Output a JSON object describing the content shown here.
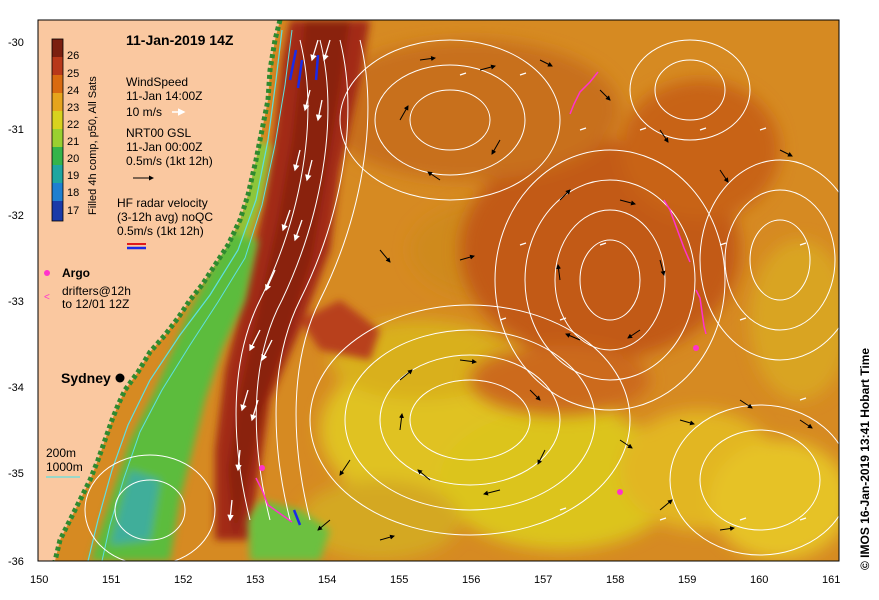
{
  "title": "11-Jan-2019 14Z",
  "colorbar": {
    "label": "Filled 4h comp, p50, All Sats",
    "ticks": [
      "26",
      "25",
      "24",
      "23",
      "22",
      "21",
      "20",
      "19",
      "18",
      "17"
    ],
    "colors": [
      "#7b1f10",
      "#b8381a",
      "#d96a10",
      "#e6a41c",
      "#d8d21e",
      "#9ad030",
      "#34b44a",
      "#1ea6a0",
      "#1e7fd0",
      "#1a3aa8"
    ]
  },
  "legend": {
    "wind_title": "WindSpeed",
    "wind_time": "11-Jan 14:00Z",
    "wind_scale": "10 m/s",
    "gsl_title": "NRT00 GSL",
    "gsl_time": "11-Jan 00:00Z",
    "gsl_scale": "0.5m/s (1kt 12h)",
    "hf_title": "HF radar velocity",
    "hf_sub": "(3-12h avg) noQC",
    "hf_scale": "0.5m/s (1kt 12h)",
    "argo": "Argo",
    "drifters_1": "drifters@12h",
    "drifters_2": "to 12/01 12Z",
    "depth_200": "200m",
    "depth_1000": "1000m"
  },
  "city": "Sydney",
  "credit": "© IMOS 16-Jan-2019 13:41 Hobart Time",
  "axes": {
    "x_ticks": [
      "150",
      "151",
      "152",
      "153",
      "154",
      "155",
      "156",
      "157",
      "158",
      "159",
      "160",
      "161"
    ],
    "y_ticks": [
      "-30",
      "-31",
      "-32",
      "-33",
      "-34",
      "-35",
      "-36"
    ]
  },
  "colors": {
    "land": "#fac8a0",
    "sea_base": "#d68a22",
    "current_core": "#a32c14",
    "warm_eddy": "#c25a18",
    "cool_water": "#e0c220",
    "shelf_green": "#5cbc3c",
    "contour": "#ffffff",
    "argo": "#ff33cc"
  }
}
